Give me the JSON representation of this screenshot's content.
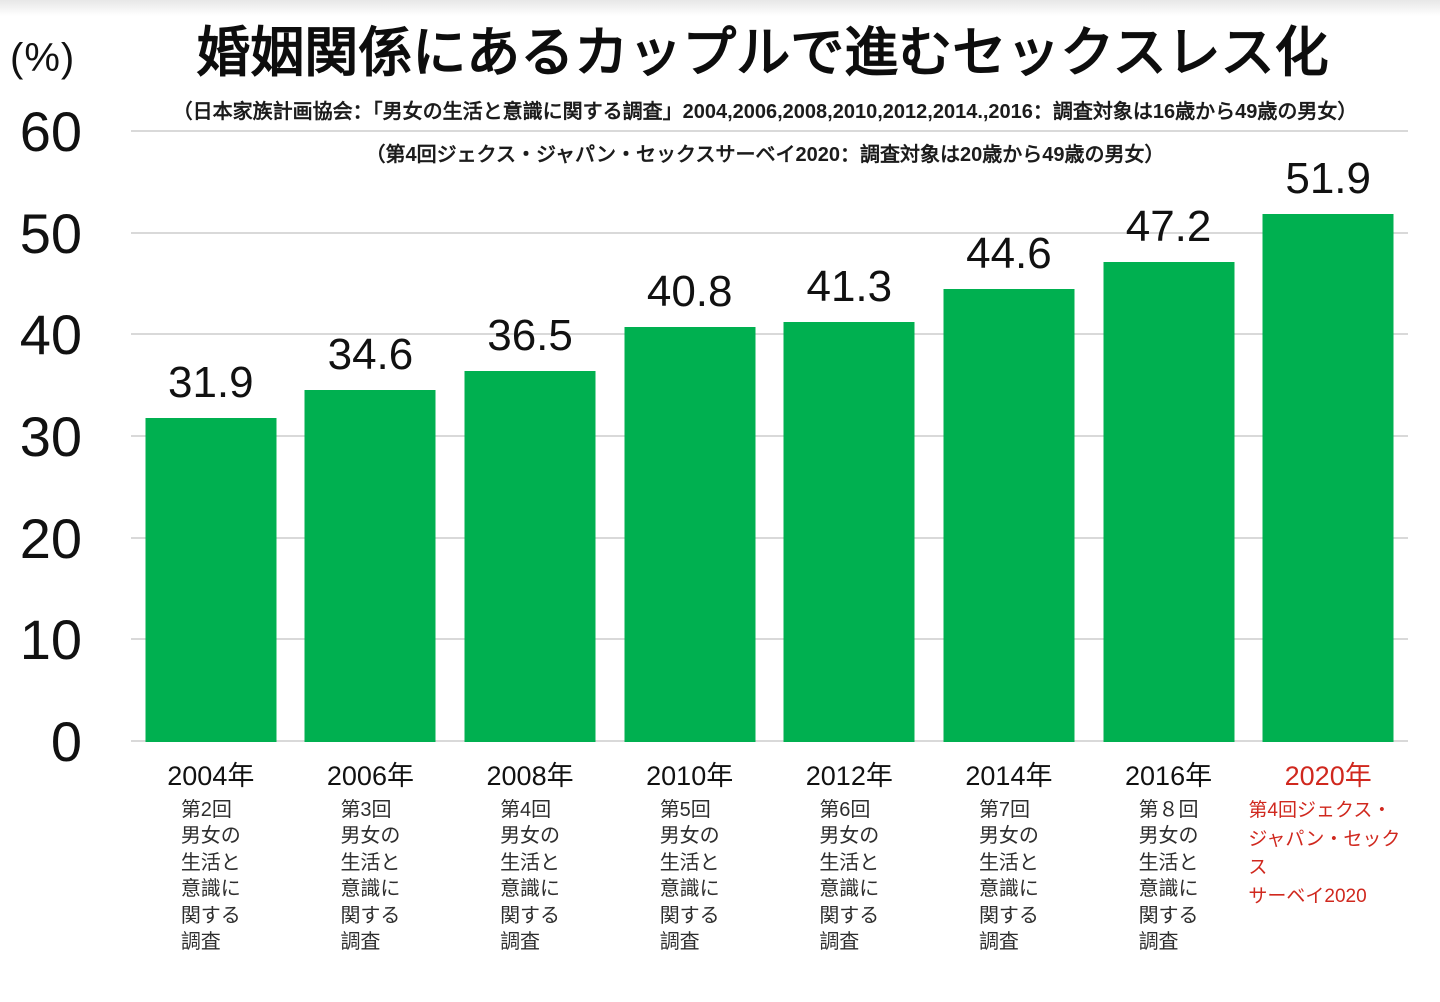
{
  "header": {
    "percent_label": "(%)",
    "title": "婚姻関係にあるカップルで進むセックスレス化",
    "subtitle1": "（日本家族計画協会：「男女の生活と意識に関する調査」2004,2006,2008,2010,2012,2014.,2016：調査対象は16歳から49歳の男女）",
    "subtitle2": "（第4回ジェクス・ジャパン・セックスサーベイ2020：調査対象は20歳から49歳の男女）"
  },
  "chart_data": {
    "type": "bar",
    "title": "婚姻関係にあるカップルで進むセックスレス化",
    "ylabel": "(%)",
    "ylim": [
      0,
      60
    ],
    "yticks": [
      0,
      10,
      20,
      30,
      40,
      50,
      60
    ],
    "grid": true,
    "legend": "none",
    "bar_color": "#00b050",
    "highlight_text_color": "#d0281e",
    "gridline_color": "#d9d9d9",
    "categories": [
      "2004年",
      "2006年",
      "2008年",
      "2010年",
      "2012年",
      "2014年",
      "2016年",
      "2020年"
    ],
    "category_sublabels": [
      [
        "第2回",
        "男女の",
        "生活と",
        "意識に",
        "関する",
        "調査"
      ],
      [
        "第3回",
        "男女の",
        "生活と",
        "意識に",
        "関する",
        "調査"
      ],
      [
        "第4回",
        "男女の",
        "生活と",
        "意識に",
        "関する",
        "調査"
      ],
      [
        "第5回",
        "男女の",
        "生活と",
        "意識に",
        "関する",
        "調査"
      ],
      [
        "第6回",
        "男女の",
        "生活と",
        "意識に",
        "関する",
        "調査"
      ],
      [
        "第7回",
        "男女の",
        "生活と",
        "意識に",
        "関する",
        "調査"
      ],
      [
        "第８回",
        "男女の",
        "生活と",
        "意識に",
        "関する",
        "調査"
      ],
      [
        "第4回ジェクス・",
        "ジャパン・セックス",
        "サーベイ2020"
      ]
    ],
    "values": [
      31.9,
      34.6,
      36.5,
      40.8,
      41.3,
      44.6,
      47.2,
      51.9
    ],
    "highlight_index": 7
  }
}
